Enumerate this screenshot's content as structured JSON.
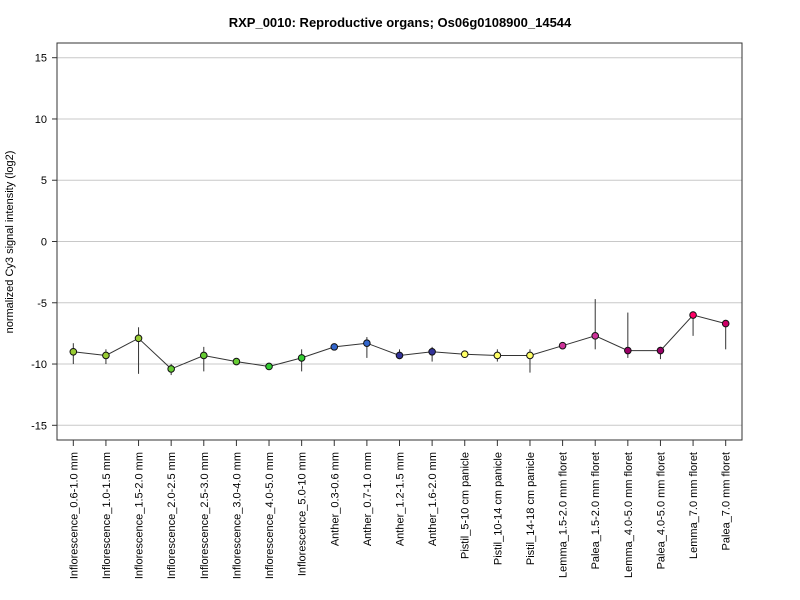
{
  "chart_data": {
    "type": "scatter",
    "title": "RXP_0010: Reproductive organs; Os06g0108900_14544",
    "xlabel": "",
    "ylabel": "normalized Cy3 signal intensity (log2)",
    "ylim": [
      -16.2,
      16.2
    ],
    "yticks": [
      15,
      10,
      5,
      0,
      -5,
      -10,
      -15
    ],
    "grid": true,
    "connect_points": true,
    "categories": [
      "Inflorescence_0.6-1.0 mm",
      "Inflorescence_1.0-1.5 mm",
      "Inflorescence_1.5-2.0 mm",
      "Inflorescence_2.0-2.5 mm",
      "Inflorescence_2.5-3.0 mm",
      "Inflorescence_3.0-4.0 mm",
      "Inflorescence_4.0-5.0 mm",
      "Inflorescence_5.0-10 mm",
      "Anther_0.3-0.6 mm",
      "Anther_0.7-1.0 mm",
      "Anther_1.2-1.5 mm",
      "Anther_1.6-2.0 mm",
      "Pistil_5-10 cm panicle",
      "Pistil_10-14 cm panicle",
      "Pistil_14-18 cm panicle",
      "Lemma_1.5-2.0 mm floret",
      "Palea_1.5-2.0 mm floret",
      "Lemma_4.0-5.0 mm floret",
      "Palea_4.0-5.0 mm floret",
      "Lemma_7.0 mm floret",
      "Palea_7.0 mm floret"
    ],
    "values": [
      -9.0,
      -9.3,
      -7.9,
      -10.4,
      -9.3,
      -9.8,
      -10.2,
      -9.5,
      -8.6,
      -8.3,
      -9.3,
      -9.0,
      -9.2,
      -9.3,
      -9.3,
      -8.5,
      -7.7,
      -8.9,
      -8.9,
      -6.0,
      -6.7
    ],
    "error_low": [
      -10.0,
      -10.0,
      -10.8,
      -10.9,
      -10.6,
      -10.0,
      -10.4,
      -10.6,
      -8.8,
      -9.5,
      -9.6,
      -9.8,
      -9.4,
      -9.8,
      -10.7,
      -8.7,
      -8.8,
      -9.5,
      -9.6,
      -7.7,
      -8.8
    ],
    "error_high": [
      -8.3,
      -8.8,
      -7.0,
      -10.0,
      -8.6,
      -9.6,
      -9.9,
      -8.8,
      -8.4,
      -7.8,
      -8.8,
      -8.6,
      -9.0,
      -8.8,
      -8.8,
      -8.2,
      -4.7,
      -5.8,
      -8.6,
      -5.7,
      -6.4
    ],
    "point_colors": [
      "#99cc33",
      "#99cc33",
      "#99cc33",
      "#66cc33",
      "#66cc33",
      "#66cc33",
      "#33cc33",
      "#33cc33",
      "#3366cc",
      "#3366cc",
      "#333399",
      "#333399",
      "#ffff66",
      "#ffff66",
      "#ffff66",
      "#cc3399",
      "#cc3399",
      "#990066",
      "#990066",
      "#ff0066",
      "#cc0066"
    ]
  }
}
